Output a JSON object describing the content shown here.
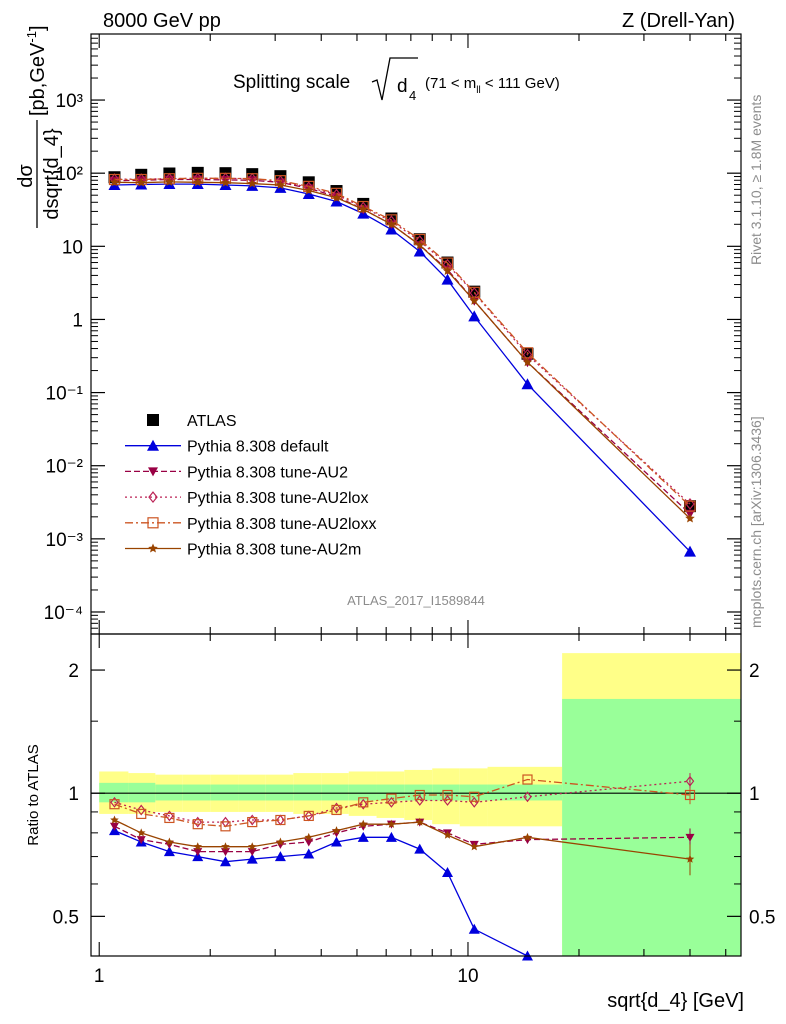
{
  "header": {
    "left": "8000 GeV pp",
    "right": "Z (Drell-Yan)"
  },
  "side_labels": {
    "rivet": "Rivet 3.1.10, ≥ 1.8M events",
    "mcplots": "mcplots.cern.ch [arXiv:1306.3436]"
  },
  "watermark": "ATLAS_2017_I1589844",
  "chart_data": [
    {
      "type": "scatter",
      "panel": "main",
      "title": "Splitting scale √d4 (71 < mll < 111 GeV)",
      "title_main": "Splitting scale",
      "title_symbol": "d",
      "title_symbol_sub": "4",
      "title_cut_pre": "(71 < m",
      "title_cut_sub": "ll",
      "title_cut_post": " < 111 GeV)",
      "ylabel": "dσ/dsqrt{d_4} [pb,GeV⁻¹]",
      "ylabel_num": "dσ",
      "ylabel_den": "dsqrt{d_4}",
      "ylabel_unit": "[pb,GeV",
      "ylabel_unit_sup": "-1",
      "ylabel_unit_close": "]",
      "xscale": "log",
      "yscale": "log",
      "xlim": [
        0.95,
        55
      ],
      "ylim": [
        5e-05,
        8000
      ],
      "y_tick_labels": [
        "10⁻⁴",
        "10⁻³",
        "10⁻²",
        "10⁻¹",
        "1",
        "10",
        "10²",
        "10³"
      ],
      "y_tick_values": [
        0.0001,
        0.001,
        0.01,
        0.1,
        1,
        10,
        100,
        1000
      ],
      "legend_position": "center-left",
      "x": [
        1.1,
        1.3,
        1.55,
        1.85,
        2.2,
        2.6,
        3.1,
        3.7,
        4.4,
        5.2,
        6.2,
        7.4,
        8.8,
        10.4,
        14.5,
        40
      ],
      "series": [
        {
          "name": "ATLAS",
          "color": "#000000",
          "marker": "square",
          "line": "none",
          "values": [
            88,
            95,
            99,
            101,
            100,
            97,
            91,
            75,
            57,
            38,
            24,
            12.5,
            6.0,
            2.4,
            0.34,
            0.0028
          ]
        },
        {
          "name": "Pythia 8.308 default",
          "color": "#0000dd",
          "marker": "triangle-up",
          "line": "solid",
          "values": [
            69,
            70,
            71,
            71,
            69,
            67,
            63,
            52,
            41,
            28,
            17,
            8.5,
            3.5,
            1.1,
            0.13,
            0.00067
          ]
        },
        {
          "name": "Pythia 8.308 tune-AU2",
          "color": "#990044",
          "marker": "triangle-down",
          "line": "dashed",
          "values": [
            79,
            80,
            82,
            82,
            81,
            80,
            75,
            62,
            48,
            32,
            20,
            10.4,
            4.8,
            1.8,
            0.26,
            0.0022
          ]
        },
        {
          "name": "Pythia 8.308 tune-AU2lox",
          "color": "#bb2255",
          "marker": "diamond-open",
          "line": "dotted",
          "values": [
            83,
            83,
            84,
            85,
            85,
            84,
            78,
            64,
            51,
            34,
            22,
            11.8,
            5.6,
            2.3,
            0.33,
            0.003
          ]
        },
        {
          "name": "Pythia 8.308 tune-AU2loxx",
          "color": "#cc5522",
          "marker": "square-open",
          "line": "dashdot",
          "values": [
            82,
            82,
            84,
            85,
            85,
            84,
            79,
            66,
            53,
            35,
            23,
            12.4,
            5.9,
            2.35,
            0.35,
            0.0028
          ]
        },
        {
          "name": "Pythia 8.308 tune-AU2m",
          "color": "#994400",
          "marker": "star",
          "line": "solid",
          "values": [
            75,
            74,
            76,
            75,
            74,
            72,
            69,
            58,
            46,
            32,
            20,
            10.4,
            4.6,
            1.8,
            0.26,
            0.0019
          ]
        }
      ]
    },
    {
      "type": "line",
      "panel": "ratio",
      "ylabel": "Ratio to ATLAS",
      "xlabel": "sqrt{d_4} [GeV]",
      "xscale": "log",
      "xlim": [
        0.95,
        55
      ],
      "ylim": [
        0.4,
        2.45
      ],
      "y_tick_labels": [
        "0.5",
        "1",
        "2"
      ],
      "y_tick_values": [
        0.5,
        1,
        2
      ],
      "x_tick_labels": [
        "1",
        "10"
      ],
      "x_tick_values": [
        1,
        10
      ],
      "uncertainty_bands": {
        "bin_edges": [
          1.0,
          1.2,
          1.42,
          1.68,
          2.0,
          2.38,
          2.82,
          3.36,
          4.0,
          4.75,
          5.65,
          6.72,
          8.0,
          9.5,
          11.3,
          18.0,
          55
        ],
        "total_hi": [
          1.13,
          1.12,
          1.11,
          1.11,
          1.11,
          1.11,
          1.11,
          1.12,
          1.12,
          1.13,
          1.13,
          1.14,
          1.15,
          1.15,
          1.16,
          2.2
        ],
        "total_lo": [
          0.89,
          0.89,
          0.9,
          0.9,
          0.9,
          0.9,
          0.9,
          0.89,
          0.89,
          0.88,
          0.87,
          0.86,
          0.84,
          0.83,
          0.83,
          0.33
        ],
        "stat_hi": [
          1.06,
          1.06,
          1.05,
          1.05,
          1.05,
          1.05,
          1.05,
          1.05,
          1.05,
          1.05,
          1.05,
          1.05,
          1.05,
          1.05,
          1.05,
          1.7
        ],
        "stat_lo": [
          0.95,
          0.95,
          0.96,
          0.96,
          0.96,
          0.96,
          0.96,
          0.96,
          0.96,
          0.96,
          0.96,
          0.96,
          0.96,
          0.96,
          0.96,
          0.33
        ],
        "total_color": "#ffff88",
        "stat_color": "#99ff99"
      },
      "x": [
        1.1,
        1.3,
        1.55,
        1.85,
        2.2,
        2.6,
        3.1,
        3.7,
        4.4,
        5.2,
        6.2,
        7.4,
        8.8,
        10.4,
        14.5,
        40
      ],
      "series": [
        {
          "name": "Pythia 8.308 default",
          "color": "#0000dd",
          "marker": "triangle-up",
          "line": "solid",
          "values": [
            0.81,
            0.76,
            0.72,
            0.7,
            0.68,
            0.69,
            0.7,
            0.71,
            0.76,
            0.78,
            0.78,
            0.73,
            0.64,
            0.465,
            0.37,
            null
          ]
        },
        {
          "name": "Pythia 8.308 tune-AU2",
          "color": "#990044",
          "marker": "triangle-down",
          "line": "dashed",
          "values": [
            0.83,
            0.77,
            0.75,
            0.72,
            0.72,
            0.72,
            0.75,
            0.76,
            0.8,
            0.83,
            0.84,
            0.85,
            0.8,
            0.75,
            0.77,
            0.78
          ]
        },
        {
          "name": "Pythia 8.308 tune-AU2lox",
          "color": "#bb2255",
          "marker": "diamond-open",
          "line": "dotted",
          "values": [
            0.95,
            0.91,
            0.88,
            0.85,
            0.85,
            0.86,
            0.86,
            0.88,
            0.92,
            0.94,
            0.95,
            0.96,
            0.96,
            0.95,
            0.98,
            1.07
          ]
        },
        {
          "name": "Pythia 8.308 tune-AU2loxx",
          "color": "#cc5522",
          "marker": "square-open",
          "line": "dashdot",
          "values": [
            0.94,
            0.89,
            0.87,
            0.84,
            0.83,
            0.85,
            0.86,
            0.88,
            0.91,
            0.95,
            0.97,
            0.99,
            0.99,
            0.98,
            1.08,
            0.99
          ]
        },
        {
          "name": "Pythia 8.308 tune-AU2m",
          "color": "#994400",
          "marker": "star",
          "line": "solid",
          "values": [
            0.86,
            0.8,
            0.76,
            0.74,
            0.74,
            0.74,
            0.76,
            0.78,
            0.81,
            0.84,
            0.84,
            0.85,
            0.79,
            0.74,
            0.78,
            0.69
          ]
        }
      ]
    }
  ]
}
